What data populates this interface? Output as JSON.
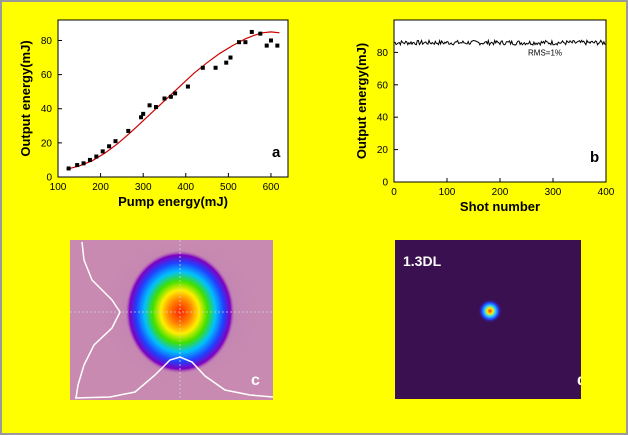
{
  "panels": {
    "a": {
      "letter": "a",
      "chart_data": {
        "type": "scatter",
        "xlabel": "Pump energy(mJ)",
        "ylabel": "Output energy(mJ)",
        "xlim": [
          100,
          640
        ],
        "ylim": [
          0,
          92
        ],
        "xticks": [
          100,
          200,
          300,
          400,
          500,
          600
        ],
        "yticks": [
          0,
          20,
          40,
          60,
          80
        ],
        "marker_color": "#000000",
        "fit_color": "#cc0000",
        "points": [
          [
            125,
            5
          ],
          [
            145,
            7
          ],
          [
            160,
            8
          ],
          [
            175,
            10
          ],
          [
            190,
            12
          ],
          [
            205,
            15
          ],
          [
            220,
            18
          ],
          [
            235,
            21
          ],
          [
            265,
            27
          ],
          [
            295,
            35
          ],
          [
            300,
            37
          ],
          [
            315,
            42
          ],
          [
            330,
            41
          ],
          [
            350,
            46
          ],
          [
            365,
            47
          ],
          [
            375,
            49
          ],
          [
            405,
            53
          ],
          [
            440,
            64
          ],
          [
            470,
            64
          ],
          [
            495,
            67
          ],
          [
            505,
            70
          ],
          [
            525,
            79
          ],
          [
            540,
            79
          ],
          [
            555,
            85
          ],
          [
            575,
            84
          ],
          [
            590,
            77
          ],
          [
            600,
            80
          ],
          [
            615,
            77
          ]
        ],
        "fit": [
          [
            120,
            4.5
          ],
          [
            150,
            6.5
          ],
          [
            180,
            9.5
          ],
          [
            210,
            14
          ],
          [
            240,
            19.5
          ],
          [
            270,
            26
          ],
          [
            300,
            33
          ],
          [
            330,
            40
          ],
          [
            360,
            47
          ],
          [
            390,
            54
          ],
          [
            420,
            61
          ],
          [
            450,
            67
          ],
          [
            480,
            72.5
          ],
          [
            510,
            77
          ],
          [
            540,
            81
          ],
          [
            560,
            83
          ],
          [
            580,
            84.5
          ],
          [
            600,
            85
          ],
          [
            620,
            84.5
          ]
        ]
      }
    },
    "b": {
      "letter": "b",
      "annotation": "RMS=1%",
      "chart_data": {
        "type": "line",
        "xlabel": "Shot number",
        "ylabel": "Output energy(mJ)",
        "xlim": [
          0,
          400
        ],
        "ylim": [
          0,
          100
        ],
        "xticks": [
          0,
          100,
          200,
          300,
          400
        ],
        "yticks": [
          0,
          20,
          40,
          60,
          80
        ],
        "line_color": "#000000",
        "mean": 86,
        "rms_fraction": 0.01
      }
    },
    "c": {
      "letter": "c"
    },
    "d": {
      "letter": "d",
      "label": "1.3DL"
    }
  }
}
